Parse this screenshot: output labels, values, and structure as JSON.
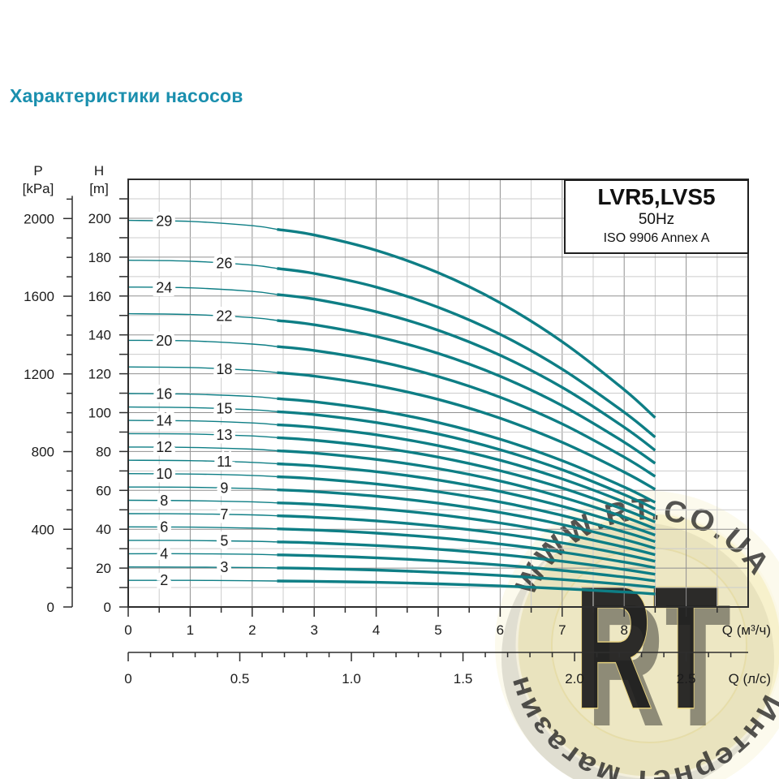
{
  "page": {
    "title": "Характеристики насосов",
    "title_color": "#1a8fae",
    "background": "#ffffff"
  },
  "legend_box": {
    "model": "LVR5,LVS5",
    "frequency": "50Hz",
    "standard": "ISO 9906 Annex A"
  },
  "watermark": {
    "arc_text_top": "WWW.RT.CO.UA",
    "arc_text_bottom": "Интернет магазин",
    "center_text": "RT",
    "badge_fill": "#f2e8ac",
    "text_gold": "#d2ae3e",
    "shadow_gray": "#a8a8a8",
    "rt_fill": "#f7efc5"
  },
  "chart_data": {
    "type": "line",
    "title": "",
    "curve_color": "#0e7e85",
    "grid": {
      "minor_color": "#cccccc",
      "major_color": "#909090",
      "border_color": "#2e2e2e",
      "x_minor_step": 0.5,
      "x_major_step": 1,
      "h_minor_step": 10,
      "h_major_step": 20
    },
    "x_axis": {
      "unit_label": "Q (м³/ч)",
      "tick_labels": [
        "0",
        "1",
        "2",
        "3",
        "4",
        "5",
        "6",
        "7",
        "8"
      ],
      "tick_values": [
        0,
        1,
        2,
        3,
        4,
        5,
        6,
        7,
        8
      ],
      "range": [
        0,
        10
      ]
    },
    "x_axis2": {
      "unit_label": "Q (л/с)",
      "tick_labels": [
        "0",
        "0.5",
        "1.0",
        "1.5",
        "2.0",
        "2.5"
      ],
      "tick_values": [
        0,
        0.5,
        1.0,
        1.5,
        2.0,
        2.5
      ],
      "minor_step": 0.1,
      "minor_max": 2.7,
      "m3h_per_ls": 3.6
    },
    "y_axis_h": {
      "header": "H",
      "unit": "[m]",
      "tick_labels": [
        "200",
        "180",
        "160",
        "140",
        "120",
        "100",
        "80",
        "60",
        "40",
        "20",
        "0"
      ],
      "tick_values": [
        200,
        180,
        160,
        140,
        120,
        100,
        80,
        60,
        40,
        20,
        0
      ],
      "minor_step": 10,
      "minor_max": 210,
      "range": [
        0,
        220
      ]
    },
    "y_axis_p": {
      "header": "P",
      "unit": "[kPa]",
      "tick_labels": [
        "2000",
        "1600",
        "1200",
        "800",
        "400",
        "0"
      ],
      "tick_values": [
        2000,
        1600,
        1200,
        800,
        400,
        0
      ],
      "minor_step": 100,
      "minor_max": 2100,
      "kpa_per_m": 9.806
    },
    "q_samples": [
      0,
      1,
      2,
      3,
      4,
      5,
      6,
      7,
      8,
      8.5
    ],
    "thick_from_q": 2.4,
    "series": [
      {
        "label": "29",
        "stages": 29,
        "label_q": 0.58,
        "values": [
          198.9,
          198.4,
          196.2,
          191.4,
          183.5,
          172.0,
          156.5,
          136.5,
          111.8,
          97.4
        ]
      },
      {
        "label": "26",
        "stages": 26,
        "label_q": 1.55,
        "values": [
          178.4,
          177.9,
          175.9,
          171.6,
          164.6,
          154.2,
          140.3,
          122.4,
          100.2,
          87.4
        ]
      },
      {
        "label": "24",
        "stages": 24,
        "label_q": 0.58,
        "values": [
          164.6,
          164.2,
          162.4,
          158.4,
          151.9,
          142.4,
          129.5,
          113.0,
          92.5,
          80.6
        ]
      },
      {
        "label": "22",
        "stages": 22,
        "label_q": 1.55,
        "values": [
          150.9,
          150.5,
          148.9,
          145.2,
          139.2,
          130.5,
          118.7,
          103.6,
          84.8,
          73.9
        ]
      },
      {
        "label": "20",
        "stages": 20,
        "label_q": 0.58,
        "values": [
          137.2,
          136.9,
          135.3,
          132.0,
          126.6,
          118.6,
          107.9,
          94.2,
          77.1,
          67.2
        ]
      },
      {
        "label": "18",
        "stages": 18,
        "label_q": 1.55,
        "values": [
          123.5,
          123.2,
          121.8,
          118.8,
          113.9,
          106.8,
          97.1,
          84.7,
          69.4,
          60.5
        ]
      },
      {
        "label": "16",
        "stages": 16,
        "label_q": 0.58,
        "values": [
          109.8,
          109.5,
          108.3,
          105.6,
          101.3,
          94.9,
          86.3,
          75.3,
          61.7,
          53.8
        ]
      },
      {
        "label": "15",
        "stages": 15,
        "label_q": 1.55,
        "values": [
          102.9,
          102.6,
          101.5,
          99.0,
          94.9,
          89.0,
          80.9,
          70.6,
          57.8,
          50.4
        ]
      },
      {
        "label": "14",
        "stages": 14,
        "label_q": 0.58,
        "values": [
          96.0,
          95.8,
          94.7,
          92.4,
          88.6,
          83.0,
          75.5,
          65.9,
          54.0,
          47.0
        ]
      },
      {
        "label": "13",
        "stages": 13,
        "label_q": 1.55,
        "values": [
          89.2,
          89.0,
          88.0,
          85.8,
          82.3,
          77.1,
          70.1,
          61.2,
          50.1,
          43.7
        ]
      },
      {
        "label": "12",
        "stages": 12,
        "label_q": 0.58,
        "values": [
          82.3,
          82.1,
          81.2,
          79.2,
          75.9,
          71.2,
          64.8,
          56.5,
          46.3,
          40.3
        ]
      },
      {
        "label": "11",
        "stages": 11,
        "label_q": 1.55,
        "values": [
          75.5,
          75.3,
          74.4,
          72.6,
          69.6,
          65.3,
          59.4,
          51.8,
          42.4,
          37.0
        ]
      },
      {
        "label": "10",
        "stages": 10,
        "label_q": 0.58,
        "values": [
          68.6,
          68.4,
          67.7,
          66.0,
          63.3,
          59.3,
          54.0,
          47.1,
          38.6,
          33.6
        ]
      },
      {
        "label": "9",
        "stages": 9,
        "label_q": 1.55,
        "values": [
          61.7,
          61.6,
          60.9,
          59.4,
          57.0,
          53.4,
          48.6,
          42.4,
          34.7,
          30.2
        ]
      },
      {
        "label": "8",
        "stages": 8,
        "label_q": 0.58,
        "values": [
          54.9,
          54.7,
          54.1,
          52.8,
          50.6,
          47.5,
          43.2,
          37.7,
          30.8,
          26.9
        ]
      },
      {
        "label": "7",
        "stages": 7,
        "label_q": 1.55,
        "values": [
          48.0,
          47.9,
          47.4,
          46.2,
          44.3,
          41.5,
          37.8,
          33.0,
          27.0,
          23.5
        ]
      },
      {
        "label": "6",
        "stages": 6,
        "label_q": 0.58,
        "values": [
          41.2,
          41.1,
          40.6,
          39.6,
          38.0,
          35.6,
          32.4,
          28.2,
          23.1,
          20.2
        ]
      },
      {
        "label": "5",
        "stages": 5,
        "label_q": 1.55,
        "values": [
          34.3,
          34.2,
          33.8,
          33.0,
          31.6,
          29.7,
          27.0,
          23.5,
          19.3,
          16.8
        ]
      },
      {
        "label": "4",
        "stages": 4,
        "label_q": 0.58,
        "values": [
          27.4,
          27.4,
          27.1,
          26.4,
          25.3,
          23.7,
          21.6,
          18.8,
          15.4,
          13.4
        ]
      },
      {
        "label": "3",
        "stages": 3,
        "label_q": 1.55,
        "values": [
          20.6,
          20.5,
          20.3,
          19.8,
          19.0,
          17.8,
          16.2,
          14.1,
          11.6,
          10.1
        ]
      },
      {
        "label": "2",
        "stages": 2,
        "label_q": 0.58,
        "values": [
          13.7,
          13.7,
          13.5,
          13.2,
          12.7,
          11.9,
          10.8,
          9.4,
          7.7,
          6.7
        ]
      }
    ]
  }
}
